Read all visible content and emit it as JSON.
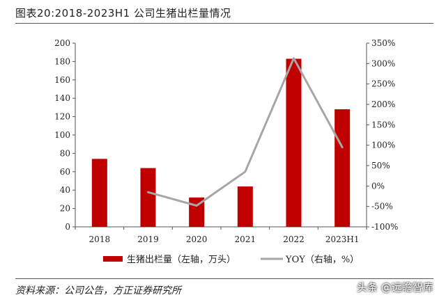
{
  "header": {
    "title": "图表20:2018-2023H1 公司生猪出栏量情况"
  },
  "footer": {
    "source": "资料来源：公司公告，方正证券研究所",
    "watermark": "头条 @远瞻智库"
  },
  "colors": {
    "bar": "#c00000",
    "line": "#a6a6a6"
  },
  "chart_data": {
    "type": "bar",
    "categories": [
      "2018",
      "2019",
      "2020",
      "2021",
      "2022",
      "2023H1"
    ],
    "series": [
      {
        "name": "生猪出栏量（左轴，万头）",
        "type": "bar",
        "axis": "left",
        "values": [
          74,
          64,
          32,
          44,
          183,
          128
        ]
      },
      {
        "name": "YOY（右轴，%）",
        "type": "line",
        "axis": "right",
        "values": [
          null,
          -15,
          -48,
          35,
          313,
          95
        ]
      }
    ],
    "ylim_left": [
      0,
      200
    ],
    "yticks_left": [
      "0",
      "20",
      "40",
      "60",
      "80",
      "100",
      "120",
      "140",
      "160",
      "180",
      "200"
    ],
    "ylim_right": [
      -100,
      350
    ],
    "yticks_right": [
      "-100%",
      "-50%",
      "0%",
      "50%",
      "100%",
      "150%",
      "200%",
      "250%",
      "300%",
      "350%"
    ],
    "grid": false,
    "legend": "bottom"
  }
}
